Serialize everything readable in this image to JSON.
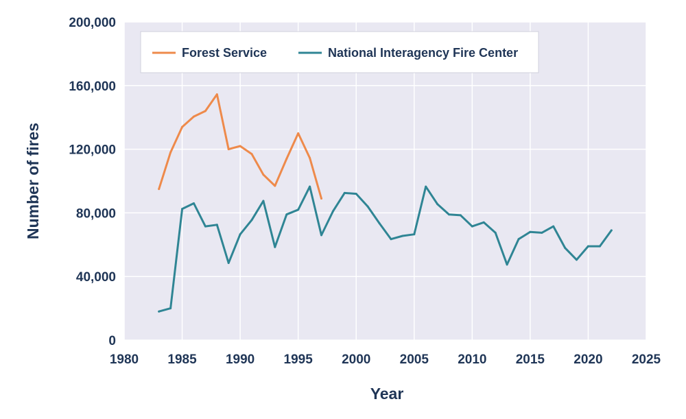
{
  "chart_data": {
    "type": "line",
    "title": "",
    "xlabel": "Year",
    "ylabel": "Number of fires",
    "xlim": [
      1980,
      2025
    ],
    "ylim": [
      0,
      200000
    ],
    "xticks": [
      1980,
      1985,
      1990,
      1995,
      2000,
      2005,
      2010,
      2015,
      2020,
      2025
    ],
    "xtick_labels": [
      "1980",
      "1985",
      "1990",
      "1995",
      "2000",
      "2005",
      "2010",
      "2015",
      "2020",
      "2025"
    ],
    "yticks": [
      0,
      40000,
      80000,
      120000,
      160000,
      200000
    ],
    "ytick_labels": [
      "0",
      "40,000",
      "80,000",
      "120,000",
      "160,000",
      "200,000"
    ],
    "grid": true,
    "legend_position": "top-left",
    "background_color": "#e9e8f2",
    "series": [
      {
        "name": "Forest Service",
        "color": "#ee8a4b",
        "x": [
          1983,
          1984,
          1985,
          1986,
          1987,
          1988,
          1989,
          1990,
          1991,
          1992,
          1993,
          1994,
          1995,
          1996,
          1997
        ],
        "values": [
          95000,
          118000,
          134000,
          140500,
          144000,
          154500,
          120000,
          122000,
          117000,
          104000,
          97000,
          114000,
          130000,
          114500,
          89000
        ]
      },
      {
        "name": "National Interagency Fire Center",
        "color": "#2f8594",
        "x": [
          1983,
          1984,
          1985,
          1986,
          1987,
          1988,
          1989,
          1990,
          1991,
          1992,
          1993,
          1994,
          1995,
          1996,
          1997,
          1998,
          1999,
          2000,
          2001,
          2002,
          2003,
          2004,
          2005,
          2006,
          2007,
          2008,
          2009,
          2010,
          2011,
          2012,
          2013,
          2014,
          2015,
          2016,
          2017,
          2018,
          2019,
          2020,
          2021,
          2022
        ],
        "values": [
          18000,
          20000,
          82500,
          86000,
          71500,
          72500,
          48500,
          66500,
          75500,
          87500,
          58500,
          79000,
          82000,
          96500,
          66000,
          81000,
          92500,
          92000,
          84000,
          73500,
          63500,
          65500,
          66500,
          96500,
          85500,
          79000,
          78500,
          71500,
          74000,
          67500,
          47500,
          63500,
          68000,
          67500,
          71500,
          58000,
          50500,
          59000,
          59000,
          69000
        ]
      }
    ]
  }
}
